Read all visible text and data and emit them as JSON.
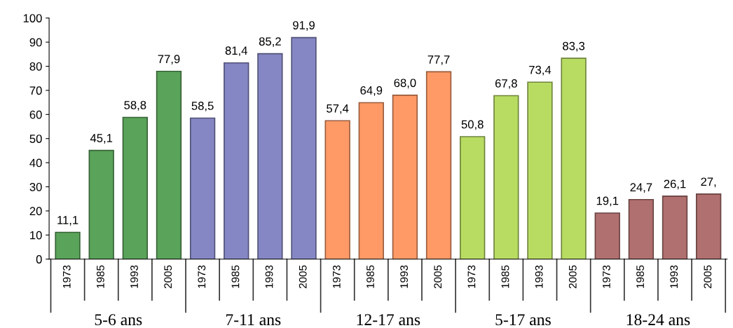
{
  "chart_data": {
    "type": "bar",
    "categories": [
      "1973",
      "1985",
      "1993",
      "2005",
      "1973",
      "1985",
      "1993",
      "2005",
      "1973",
      "1985",
      "1993",
      "2005",
      "1973",
      "1985",
      "1993",
      "2005",
      "1973",
      "1985",
      "1993",
      "2005"
    ],
    "series": [
      {
        "name": "5-6 ans",
        "color": "#5aa35a",
        "values": [
          11.1,
          45.1,
          58.8,
          77.9,
          null,
          null,
          null,
          null,
          null,
          null,
          null,
          null,
          null,
          null,
          null,
          null,
          null,
          null,
          null,
          null
        ],
        "value_labels": [
          "11,1",
          "45,1",
          "58,8",
          "77,9",
          null,
          null,
          null,
          null,
          null,
          null,
          null,
          null,
          null,
          null,
          null,
          null,
          null,
          null,
          null,
          null
        ]
      },
      {
        "name": "7-11 ans",
        "color": "#8587c4",
        "values": [
          null,
          null,
          null,
          null,
          58.5,
          81.4,
          85.2,
          91.9,
          null,
          null,
          null,
          null,
          null,
          null,
          null,
          null,
          null,
          null,
          null,
          null
        ],
        "value_labels": [
          null,
          null,
          null,
          null,
          "58,5",
          "81,4",
          "85,2",
          "91,9",
          null,
          null,
          null,
          null,
          null,
          null,
          null,
          null,
          null,
          null,
          null,
          null
        ]
      },
      {
        "name": "12-17 ans",
        "color": "#ff9a66",
        "values": [
          null,
          null,
          null,
          null,
          null,
          null,
          null,
          null,
          57.4,
          64.9,
          68.0,
          77.7,
          null,
          null,
          null,
          null,
          null,
          null,
          null,
          null
        ],
        "value_labels": [
          null,
          null,
          null,
          null,
          null,
          null,
          null,
          null,
          "57,4",
          "64,9",
          "68,0",
          "77,7",
          null,
          null,
          null,
          null,
          null,
          null,
          null,
          null
        ]
      },
      {
        "name": "5-17 ans",
        "color": "#b8dc62",
        "values": [
          null,
          null,
          null,
          null,
          null,
          null,
          null,
          null,
          null,
          null,
          null,
          null,
          50.8,
          67.8,
          73.4,
          83.3,
          null,
          null,
          null,
          null
        ],
        "value_labels": [
          null,
          null,
          null,
          null,
          null,
          null,
          null,
          null,
          null,
          null,
          null,
          null,
          "50,8",
          "67,8",
          "73,4",
          "83,3",
          null,
          null,
          null,
          null
        ]
      },
      {
        "name": "18-24 ans",
        "color": "#b0706f",
        "values": [
          null,
          null,
          null,
          null,
          null,
          null,
          null,
          null,
          null,
          null,
          null,
          null,
          null,
          null,
          null,
          null,
          19.1,
          24.7,
          26.1,
          27.0
        ],
        "value_labels": [
          null,
          null,
          null,
          null,
          null,
          null,
          null,
          null,
          null,
          null,
          null,
          null,
          null,
          null,
          null,
          null,
          "19,1",
          "24,7",
          "26,1",
          "27,"
        ]
      }
    ],
    "ylim": [
      0,
      100
    ],
    "yticks": [
      0,
      10,
      20,
      30,
      40,
      50,
      60,
      70,
      80,
      90,
      100
    ],
    "grid": false
  }
}
